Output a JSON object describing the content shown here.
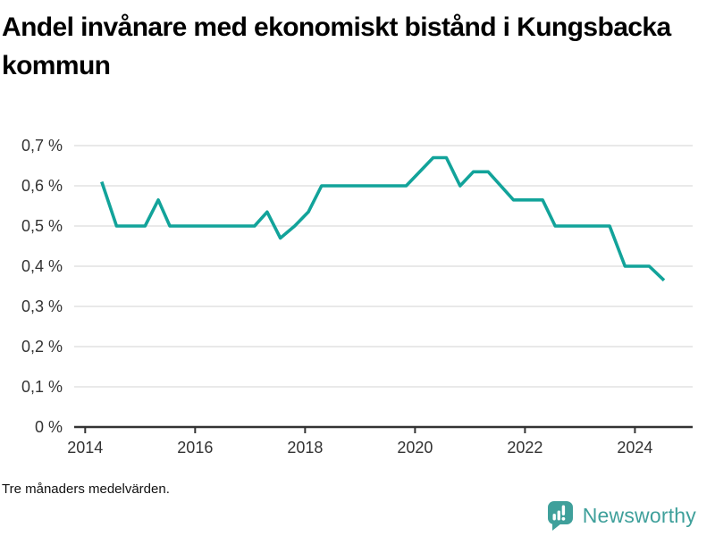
{
  "header": {
    "title": "Andel invånare med ekonomiskt bistånd i Kungsbacka kommun"
  },
  "chart_data": {
    "type": "line",
    "title": "Andel invånare med ekonomiskt bistånd i Kungsbacka kommun",
    "note": "Tre månaders medelvärden.",
    "unit": "%",
    "xlabel": "",
    "ylabel": "",
    "xlim": [
      2013.8,
      2025.05
    ],
    "ylim": [
      0,
      0.75
    ],
    "grid": true,
    "legend_position": "none",
    "line_color": "#12a39a",
    "grid_color": "#dcdcdc",
    "axis_color": "#333333",
    "tick_label_color": "#333333",
    "yticks": [
      {
        "v": 0.0,
        "label": "0 %"
      },
      {
        "v": 0.1,
        "label": "0,1 %"
      },
      {
        "v": 0.2,
        "label": "0,2 %"
      },
      {
        "v": 0.3,
        "label": "0,3 %"
      },
      {
        "v": 0.4,
        "label": "0,4 %"
      },
      {
        "v": 0.5,
        "label": "0,5 %"
      },
      {
        "v": 0.6,
        "label": "0,6 %"
      },
      {
        "v": 0.7,
        "label": "0,7 %"
      }
    ],
    "xticks": [
      {
        "v": 2014,
        "label": "2014"
      },
      {
        "v": 2016,
        "label": "2016"
      },
      {
        "v": 2018,
        "label": "2018"
      },
      {
        "v": 2020,
        "label": "2020"
      },
      {
        "v": 2022,
        "label": "2022"
      },
      {
        "v": 2024,
        "label": "2024"
      }
    ],
    "series": [
      {
        "name": "Andel invånare med ekonomiskt bistånd",
        "points": [
          [
            2014.3,
            0.61
          ],
          [
            2014.57,
            0.5
          ],
          [
            2015.09,
            0.5
          ],
          [
            2015.33,
            0.565
          ],
          [
            2015.54,
            0.5
          ],
          [
            2017.08,
            0.5
          ],
          [
            2017.31,
            0.535
          ],
          [
            2017.55,
            0.47
          ],
          [
            2017.81,
            0.5
          ],
          [
            2018.06,
            0.535
          ],
          [
            2018.3,
            0.6
          ],
          [
            2019.84,
            0.6
          ],
          [
            2020.33,
            0.67
          ],
          [
            2020.57,
            0.67
          ],
          [
            2020.82,
            0.6
          ],
          [
            2021.06,
            0.635
          ],
          [
            2021.33,
            0.635
          ],
          [
            2021.79,
            0.565
          ],
          [
            2022.32,
            0.565
          ],
          [
            2022.55,
            0.5
          ],
          [
            2023.54,
            0.5
          ],
          [
            2023.82,
            0.4
          ],
          [
            2024.26,
            0.4
          ],
          [
            2024.53,
            0.365
          ]
        ]
      }
    ]
  },
  "branding": {
    "wordmark": "Newsworthy",
    "logo_color": "#3fa09b"
  }
}
